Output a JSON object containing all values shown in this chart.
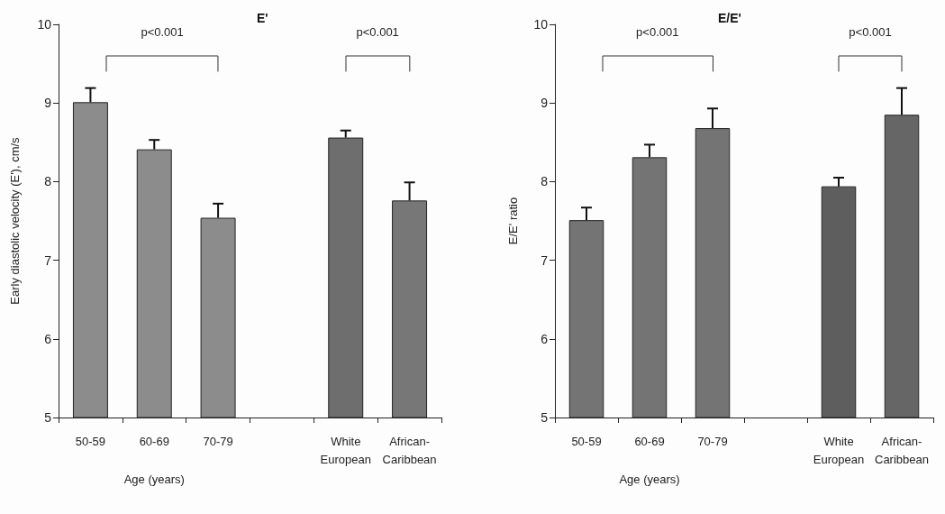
{
  "chart_data": [
    {
      "type": "bar",
      "title": "E'",
      "ylabel": "Early diastolic velocity (E'), cm/s",
      "xlabel": "Age (years)",
      "categories": [
        "50-59",
        "60-69",
        "70-79",
        null,
        "White\nEuropean",
        "African-\nCaribbean"
      ],
      "values": [
        9.01,
        8.41,
        7.54,
        null,
        8.56,
        7.76
      ],
      "errors": [
        [
          9.01,
          9.19
        ],
        [
          8.41,
          8.53
        ],
        [
          7.54,
          7.72
        ],
        null,
        [
          8.56,
          8.65
        ],
        [
          7.76,
          7.99
        ]
      ],
      "colors": [
        "#8c8c8c",
        "#8c8c8c",
        "#8c8c8c",
        "#8c8c8c",
        "#6e6e6e",
        "#777777"
      ],
      "ylim": [
        5,
        10
      ],
      "yticks": [
        5,
        6,
        7,
        8,
        9,
        10
      ],
      "grid": false,
      "annotations": [
        "p<0.001",
        "p<0.001"
      ]
    },
    {
      "type": "bar",
      "title": "E/E'",
      "ylabel": "E/E' ratio",
      "xlabel": "Age (years)",
      "categories": [
        "50-59",
        "60-69",
        "70-79",
        null,
        "White\nEuropean",
        "African-\nCaribbean"
      ],
      "values": [
        7.51,
        8.31,
        8.68,
        null,
        7.94,
        8.85
      ],
      "errors": [
        [
          7.51,
          7.67
        ],
        [
          8.31,
          8.47
        ],
        [
          8.68,
          8.93
        ],
        null,
        [
          7.94,
          8.05
        ],
        [
          8.85,
          9.19
        ]
      ],
      "colors": [
        "#747474",
        "#747474",
        "#747474",
        "#747474",
        "#5e5e5e",
        "#666666"
      ],
      "ylim": [
        5,
        10
      ],
      "yticks": [
        5,
        6,
        7,
        8,
        9,
        10
      ],
      "grid": false,
      "annotations": [
        "p<0.001",
        "p<0.001"
      ]
    }
  ]
}
